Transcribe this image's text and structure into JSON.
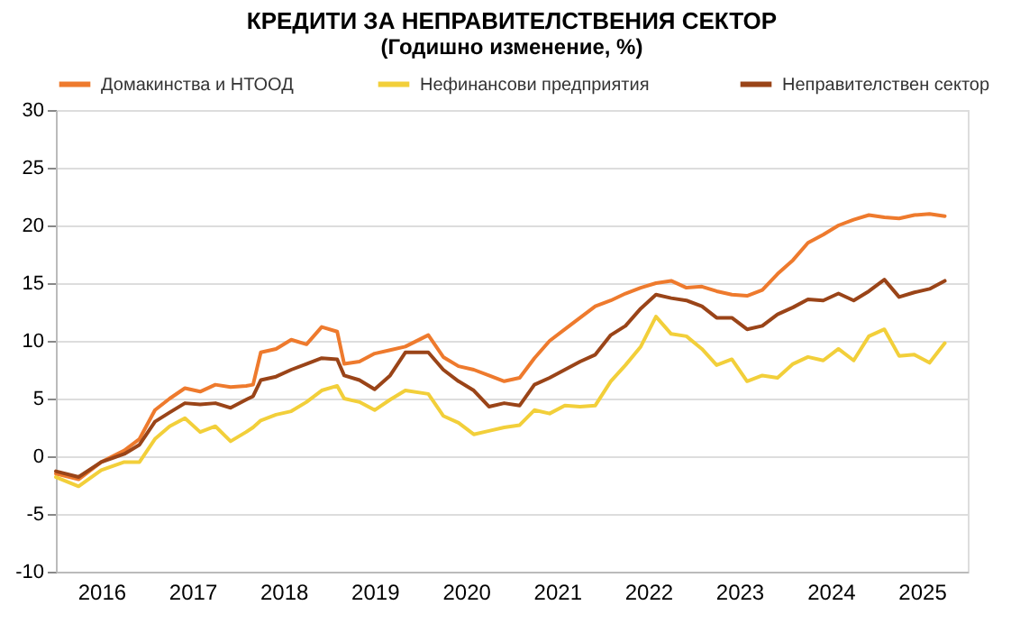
{
  "chart_data": {
    "type": "line",
    "title": "КРЕДИТИ ЗА НЕПРАВИТЕЛСТВЕНИЯ  СЕКТОР",
    "subtitle": "(Годишно  изменение, %)",
    "x": [
      "2016-01",
      "2016-04",
      "2016-07",
      "2016-10",
      "2016-12",
      "2017-02",
      "2017-04",
      "2017-06",
      "2017-08",
      "2017-10",
      "2017-12",
      "2018-02",
      "2018-03",
      "2018-04",
      "2018-06",
      "2018-08",
      "2018-10",
      "2018-12",
      "2019-02",
      "2019-03",
      "2019-05",
      "2019-07",
      "2019-09",
      "2019-11",
      "2020-02",
      "2020-04",
      "2020-06",
      "2020-08",
      "2020-10",
      "2020-12",
      "2021-02",
      "2021-04",
      "2021-06",
      "2021-08",
      "2021-10",
      "2021-12",
      "2022-02",
      "2022-04",
      "2022-06",
      "2022-08",
      "2022-10",
      "2022-12",
      "2023-02",
      "2023-04",
      "2023-06",
      "2023-08",
      "2023-10",
      "2023-12",
      "2024-02",
      "2024-04",
      "2024-06",
      "2024-08",
      "2024-10",
      "2024-12",
      "2025-02",
      "2025-04",
      "2025-06",
      "2025-08",
      "2025-10"
    ],
    "series": [
      {
        "name": "Домакинства и НТООД",
        "color": "#ee7a2d",
        "values": [
          -1.5,
          -2.0,
          -0.5,
          0.5,
          1.5,
          4.0,
          5.0,
          5.9,
          5.6,
          6.2,
          6.0,
          6.1,
          6.2,
          9.0,
          9.3,
          10.1,
          9.7,
          11.2,
          10.8,
          8.0,
          8.2,
          8.9,
          9.2,
          9.5,
          10.5,
          8.6,
          7.8,
          7.5,
          7.0,
          6.5,
          6.8,
          8.5,
          10.0,
          11.0,
          12.0,
          13.0,
          13.5,
          14.1,
          14.6,
          15.0,
          15.2,
          14.6,
          14.7,
          14.3,
          14.0,
          13.9,
          14.4,
          15.8,
          17.0,
          18.5,
          19.2,
          20.0,
          20.5,
          20.9,
          20.7,
          20.6,
          20.9,
          21.0,
          20.8
        ]
      },
      {
        "name": "Нефинансови  предприятия",
        "color": "#f2cf3a",
        "values": [
          -1.8,
          -2.6,
          -1.2,
          -0.5,
          -0.5,
          1.5,
          2.6,
          3.3,
          2.1,
          2.6,
          1.3,
          2.1,
          2.5,
          3.1,
          3.6,
          3.9,
          4.7,
          5.7,
          6.1,
          5.0,
          4.7,
          4.0,
          4.9,
          5.7,
          5.4,
          3.5,
          2.9,
          1.9,
          2.2,
          2.5,
          2.7,
          4.0,
          3.7,
          4.4,
          4.3,
          4.4,
          6.5,
          7.9,
          9.5,
          12.1,
          10.6,
          10.4,
          9.3,
          7.9,
          8.4,
          6.5,
          7.0,
          6.8,
          8.0,
          8.6,
          8.3,
          9.3,
          8.3,
          10.4,
          11.0,
          8.7,
          8.8,
          8.1,
          9.8
        ]
      },
      {
        "name": "Неправителствен сектор",
        "color": "#9a4418",
        "values": [
          -1.3,
          -1.8,
          -0.5,
          0.2,
          1.0,
          3.0,
          3.8,
          4.6,
          4.5,
          4.6,
          4.2,
          4.9,
          5.2,
          6.6,
          6.9,
          7.5,
          8.0,
          8.5,
          8.4,
          7.0,
          6.6,
          5.8,
          7.0,
          9.0,
          9.0,
          7.5,
          6.5,
          5.7,
          4.3,
          4.6,
          4.4,
          6.2,
          6.8,
          7.5,
          8.2,
          8.8,
          10.5,
          11.3,
          12.8,
          14.0,
          13.7,
          13.5,
          13.0,
          12.0,
          12.0,
          11.0,
          11.3,
          12.3,
          12.9,
          13.6,
          13.5,
          14.1,
          13.5,
          14.3,
          15.3,
          13.8,
          14.2,
          14.5,
          15.2
        ]
      }
    ],
    "xlim": [
      "2016-01",
      "2026-01"
    ],
    "xticks": [
      {
        "value": "2016-07",
        "label": "2016"
      },
      {
        "value": "2017-07",
        "label": "2017"
      },
      {
        "value": "2018-07",
        "label": "2018"
      },
      {
        "value": "2019-07",
        "label": "2019"
      },
      {
        "value": "2020-07",
        "label": "2020"
      },
      {
        "value": "2021-07",
        "label": "2021"
      },
      {
        "value": "2022-07",
        "label": "2022"
      },
      {
        "value": "2023-07",
        "label": "2023"
      },
      {
        "value": "2024-07",
        "label": "2024"
      },
      {
        "value": "2025-07",
        "label": "2025"
      }
    ],
    "ylim": [
      -10,
      30
    ],
    "yticks": [
      -10,
      -5,
      0,
      5,
      10,
      15,
      20,
      25,
      30
    ],
    "grid": "y",
    "legend": "top",
    "marker": "none",
    "line_style": "solid"
  }
}
